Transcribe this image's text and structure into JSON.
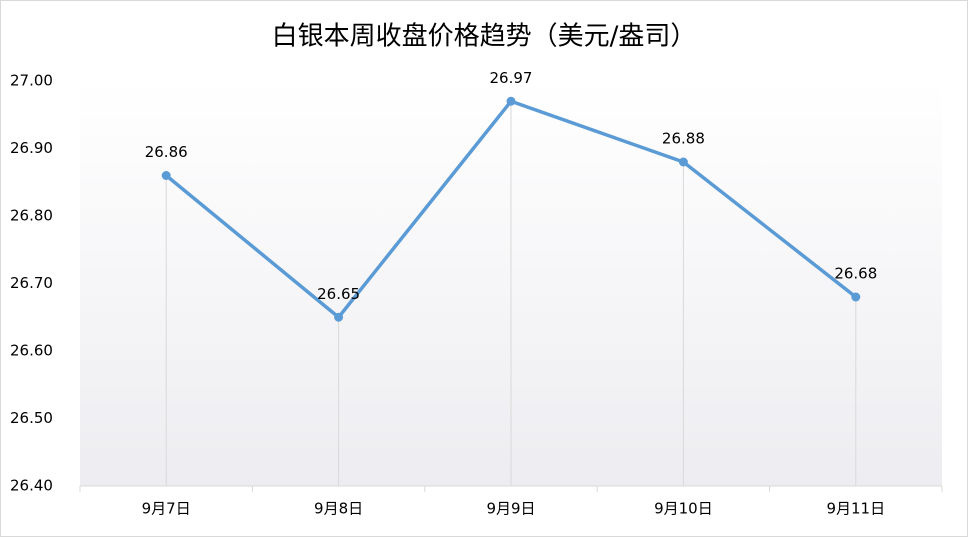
{
  "chart_data": {
    "type": "line",
    "title": "白银本周收盘价格趋势（美元/盎司）",
    "categories": [
      "9月7日",
      "9月8日",
      "9月9日",
      "9月10日",
      "9月11日"
    ],
    "values": [
      26.86,
      26.65,
      26.97,
      26.88,
      26.68
    ],
    "color": "#5b9bd5",
    "ylim": [
      26.4,
      27.0
    ],
    "yticks": [
      {
        "value": 26.4,
        "label": "26.40"
      },
      {
        "value": 26.5,
        "label": "26.50"
      },
      {
        "value": 26.6,
        "label": "26.60"
      },
      {
        "value": 26.7,
        "label": "26.70"
      },
      {
        "value": 26.8,
        "label": "26.80"
      },
      {
        "value": 26.9,
        "label": "26.90"
      },
      {
        "value": 27.0,
        "label": "27.00"
      }
    ],
    "drop_lines": true
  }
}
